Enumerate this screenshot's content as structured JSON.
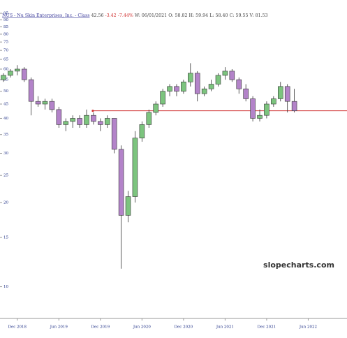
{
  "header": {
    "items": [
      {
        "text": "NUS - Nu Skin Enterprises, Inc. - Class",
        "color": "#3a3a9a"
      },
      {
        "text": "42.56",
        "color": "#444444"
      },
      {
        "text": "-3.42",
        "color": "#d03030"
      },
      {
        "text": "-7.44%",
        "color": "#d03030"
      },
      {
        "text": "W: 06/01/2021",
        "color": "#444444"
      },
      {
        "text": "O: 58.82",
        "color": "#444444"
      },
      {
        "text": "H: 59.94",
        "color": "#444444"
      },
      {
        "text": "L: 58.40",
        "color": "#444444"
      },
      {
        "text": "C: 59.55",
        "color": "#444444"
      },
      {
        "text": "V: 81.53",
        "color": "#444444"
      }
    ]
  },
  "chart_data": {
    "type": "candlestick",
    "annotation": "slopecharts.com",
    "log_scale": true,
    "ylim": [
      7.7,
      106
    ],
    "yticks": [
      10,
      15,
      20,
      25,
      30,
      35,
      40,
      45,
      50,
      55,
      60,
      65,
      70,
      75,
      80,
      85,
      90,
      95
    ],
    "xlim": [
      -2.5,
      47.6
    ],
    "xticks": [
      {
        "value": 0,
        "label": "Dec 2018"
      },
      {
        "value": 6,
        "label": "Jun 2019"
      },
      {
        "value": 12,
        "label": "Dec 2019"
      },
      {
        "value": 18,
        "label": "Jun 2020"
      },
      {
        "value": 24,
        "label": "Dec 2020"
      },
      {
        "value": 30,
        "label": "Jun 2021"
      },
      {
        "value": 36,
        "label": "Dec 2021"
      },
      {
        "value": 42,
        "label": "Jun 2022"
      }
    ],
    "up_color": "#7cc47e",
    "down_color": "#b383c9",
    "hline": {
      "value": 42.56,
      "start_x": 10.9,
      "color": "#d03030"
    },
    "x": [
      -2,
      -1,
      0,
      1,
      2,
      3,
      4,
      5,
      6,
      7,
      8,
      9,
      10,
      11,
      12,
      13,
      14,
      15,
      16,
      17,
      18,
      19,
      20,
      21,
      22,
      23,
      24,
      25,
      26,
      27,
      28,
      29,
      30,
      31,
      32,
      33,
      34,
      35,
      36,
      37,
      38,
      39,
      40
    ],
    "open": [
      55,
      57,
      59,
      60,
      55,
      46,
      45,
      46,
      43,
      38,
      39,
      40,
      38,
      41,
      39,
      38,
      40,
      31,
      18,
      21,
      34,
      38,
      42,
      45,
      50,
      52,
      50,
      54,
      58,
      49,
      51,
      53,
      57,
      59,
      55,
      51,
      47,
      40,
      41,
      45,
      47,
      52,
      46
    ],
    "high": [
      58,
      60,
      62,
      61,
      56,
      48,
      47,
      47,
      44,
      40,
      41,
      41,
      43,
      42,
      40,
      41,
      40,
      32,
      22,
      36,
      39,
      43,
      46,
      51,
      53,
      53,
      55,
      63,
      59,
      52,
      55,
      58,
      61,
      60,
      56,
      53,
      48,
      43,
      46,
      48,
      54,
      53,
      51
    ],
    "low": [
      54,
      56,
      57,
      54,
      41,
      44,
      43,
      42,
      37,
      36,
      37,
      37,
      37,
      38,
      36,
      37,
      30,
      11.6,
      17,
      20,
      33,
      37,
      41,
      44,
      48,
      48,
      49,
      52,
      46,
      48,
      50,
      52,
      55,
      54,
      49,
      46,
      39,
      39,
      40,
      44,
      46,
      42,
      42
    ],
    "close": [
      57,
      59,
      60,
      55,
      46,
      45,
      46,
      43,
      38,
      39,
      40,
      38,
      41,
      39,
      38,
      40,
      31,
      18,
      21,
      34,
      38,
      42,
      45,
      50,
      52,
      50,
      54,
      58,
      49,
      51,
      53,
      57,
      59,
      55,
      51,
      47,
      40,
      41,
      45,
      47,
      52,
      46,
      42.56
    ]
  }
}
